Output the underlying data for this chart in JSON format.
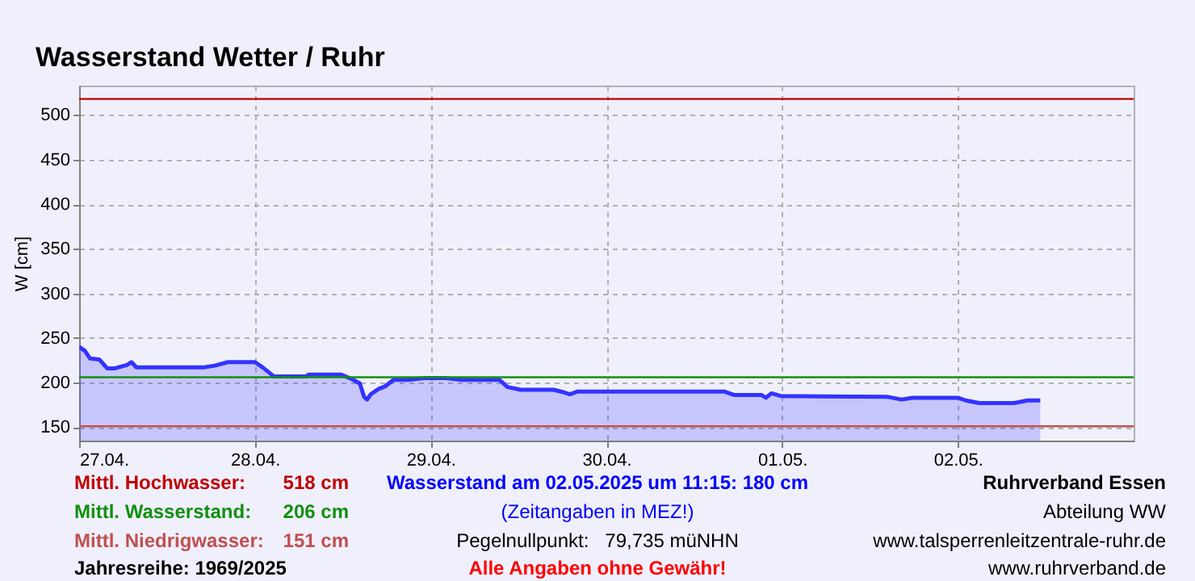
{
  "chart_data": {
    "type": "area",
    "title": "Wasserstand Wetter / Ruhr",
    "ylabel": "W [cm]",
    "x": [
      "2025-04-27T00:00",
      "2025-04-27T00:45",
      "2025-04-27T01:30",
      "2025-04-27T02:45",
      "2025-04-27T03:50",
      "2025-04-27T04:55",
      "2025-04-27T06:35",
      "2025-04-27T07:08",
      "2025-04-27T07:50",
      "2025-04-27T17:00",
      "2025-04-27T18:30",
      "2025-04-27T20:20",
      "2025-04-28T00:00",
      "2025-04-28T01:05",
      "2025-04-28T02:35",
      "2025-04-28T07:00",
      "2025-04-28T07:20",
      "2025-04-28T11:45",
      "2025-04-28T13:15",
      "2025-04-28T14:20",
      "2025-04-28T14:55",
      "2025-04-28T15:20",
      "2025-04-28T15:50",
      "2025-04-28T16:55",
      "2025-04-28T17:50",
      "2025-04-28T18:55",
      "2025-04-28T20:55",
      "2025-04-28T23:05",
      "2025-04-29T02:05",
      "2025-04-29T04:15",
      "2025-04-29T09:25",
      "2025-04-29T10:30",
      "2025-04-29T12:20",
      "2025-04-29T16:45",
      "2025-04-29T18:15",
      "2025-04-29T19:00",
      "2025-04-29T20:05",
      "2025-04-30T16:05",
      "2025-04-30T17:30",
      "2025-04-30T21:12",
      "2025-04-30T21:48",
      "2025-04-30T22:32",
      "2025-04-30T23:47",
      "2025-05-01T14:28",
      "2025-05-01T16:18",
      "2025-05-01T17:46",
      "2025-05-02T00:00",
      "2025-05-02T01:06",
      "2025-05-02T02:56",
      "2025-05-02T07:42",
      "2025-05-02T09:32",
      "2025-05-02T11:15"
    ],
    "series": [
      {
        "color": "#3333ff",
        "values": [
          240,
          236,
          227,
          226,
          216,
          216,
          220,
          223,
          217,
          217,
          219,
          223,
          223,
          217,
          207,
          207,
          209,
          209,
          204,
          199,
          184,
          181,
          187,
          193,
          196,
          203,
          203,
          205,
          205,
          203,
          203,
          195,
          192,
          192,
          189,
          187,
          190,
          190,
          186,
          186,
          183,
          188,
          185,
          184,
          181,
          183,
          183,
          180,
          177,
          177,
          180,
          180
        ]
      }
    ],
    "xlim": [
      "2025-04-27T00:00",
      "2025-05-03T00:00"
    ],
    "xticks": [
      {
        "value": "2025-04-27T00:00",
        "label": "27.04."
      },
      {
        "value": "2025-04-28T00:00",
        "label": "28.04."
      },
      {
        "value": "2025-04-29T00:00",
        "label": "29.04."
      },
      {
        "value": "2025-04-30T00:00",
        "label": "30.04."
      },
      {
        "value": "2025-05-01T00:00",
        "label": "01.05."
      },
      {
        "value": "2025-05-02T00:00",
        "label": "02.05."
      }
    ],
    "ylim": [
      135,
      533
    ],
    "yticks": [
      150,
      200,
      250,
      300,
      350,
      400,
      450,
      500
    ],
    "grid": true,
    "ref_lines": [
      {
        "axis": "y",
        "value": 518,
        "label": "Mittl. Hochwasser:",
        "color": "#c00000"
      },
      {
        "axis": "y",
        "value": 206,
        "label": "Mittl. Wasserstand:",
        "color": "#109010"
      },
      {
        "axis": "y",
        "value": 151,
        "label": "Mittl. Niedrigwasser:",
        "color": "#c05050"
      }
    ],
    "annotations": [
      "518 cm",
      "206 cm",
      "151 cm",
      "Jahresreihe: 1969/2025",
      "Wasserstand am 02.05.2025 um 11:15: 180 cm",
      "(Zeitangaben in MEZ!)",
      "Pegelnullpunkt:   79,735 müNHN",
      "Alle Angaben ohne Gewähr!",
      "Ruhrverband Essen",
      "Abteilung WW",
      "www.talsperrenleitzentrale-ruhr.de",
      "www.ruhrverband.de"
    ]
  }
}
